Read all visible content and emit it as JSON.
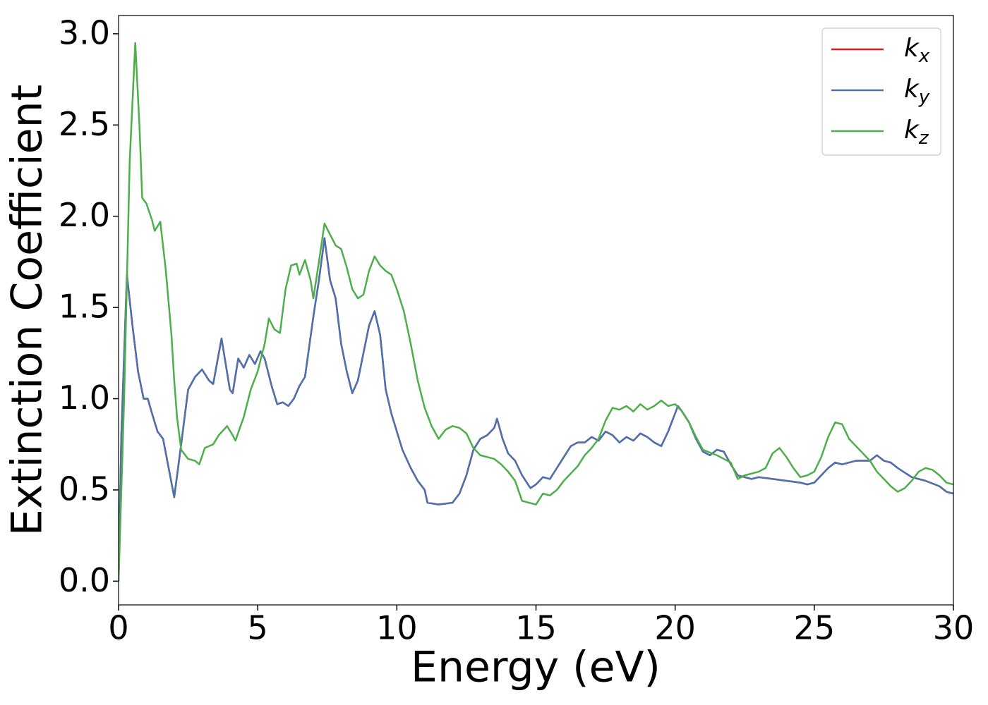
{
  "chart_data": {
    "type": "line",
    "xlabel": "Energy (eV)",
    "ylabel": "Extinction Coefficient",
    "xlim": [
      0,
      30
    ],
    "ylim": [
      -0.13,
      3.1
    ],
    "xticks": [
      0,
      5,
      10,
      15,
      20,
      25,
      30
    ],
    "yticks": [
      {
        "value": 0,
        "label": "0.0"
      },
      0.5,
      {
        "value": 1,
        "label": "1.0"
      },
      1.5,
      {
        "value": 2,
        "label": "2.0"
      },
      2.5,
      {
        "value": 3,
        "label": "3.0"
      }
    ],
    "legend": "upper right",
    "series": [
      {
        "name": "kx",
        "color": "#e41a1c",
        "x": [
          0,
          0.1,
          0.3,
          0.5,
          0.7,
          0.9,
          1.05,
          1.2,
          1.4,
          1.6,
          1.8,
          2.0,
          2.25,
          2.5,
          2.75,
          3.0,
          3.25,
          3.4,
          3.7,
          4.0,
          4.1,
          4.3,
          4.5,
          4.7,
          4.9,
          5.1,
          5.25,
          5.5,
          5.7,
          5.9,
          6.1,
          6.3,
          6.5,
          6.7,
          7.0,
          7.2,
          7.4,
          7.6,
          7.8,
          8.0,
          8.2,
          8.4,
          8.6,
          8.8,
          9.0,
          9.2,
          9.4,
          9.6,
          9.8,
          10.0,
          10.2,
          10.5,
          10.75,
          11.0,
          11.1,
          11.5,
          12.0,
          12.25,
          12.5,
          12.75,
          13.0,
          13.25,
          13.5,
          13.6,
          13.8,
          14.0,
          14.25,
          14.5,
          14.8,
          15.0,
          15.25,
          15.5,
          15.75,
          16.0,
          16.25,
          16.5,
          16.75,
          17.0,
          17.25,
          17.5,
          17.75,
          18.0,
          18.25,
          18.5,
          18.75,
          19.0,
          19.25,
          19.5,
          19.75,
          20.0,
          20.1,
          20.25,
          20.5,
          20.75,
          21.0,
          21.25,
          21.5,
          21.75,
          22.0,
          22.25,
          22.5,
          22.75,
          23.0,
          23.5,
          24.0,
          24.5,
          24.75,
          25.0,
          25.25,
          25.5,
          25.75,
          26.0,
          26.5,
          27.0,
          27.25,
          27.5,
          27.75,
          28.0,
          28.5,
          29.0,
          29.5,
          29.75,
          30.0
        ],
        "values": [
          0,
          0.8,
          1.68,
          1.4,
          1.15,
          1.0,
          1.0,
          0.92,
          0.82,
          0.78,
          0.62,
          0.46,
          0.75,
          1.05,
          1.12,
          1.16,
          1.1,
          1.08,
          1.33,
          1.05,
          1.03,
          1.22,
          1.17,
          1.24,
          1.19,
          1.26,
          1.22,
          1.07,
          0.97,
          0.98,
          0.96,
          1.0,
          1.07,
          1.12,
          1.45,
          1.65,
          1.88,
          1.65,
          1.55,
          1.3,
          1.15,
          1.03,
          1.1,
          1.25,
          1.4,
          1.48,
          1.35,
          1.05,
          0.92,
          0.82,
          0.72,
          0.62,
          0.55,
          0.5,
          0.43,
          0.42,
          0.43,
          0.48,
          0.58,
          0.72,
          0.78,
          0.8,
          0.84,
          0.89,
          0.78,
          0.7,
          0.66,
          0.58,
          0.51,
          0.53,
          0.57,
          0.56,
          0.62,
          0.68,
          0.74,
          0.76,
          0.76,
          0.79,
          0.77,
          0.82,
          0.8,
          0.76,
          0.79,
          0.77,
          0.81,
          0.79,
          0.76,
          0.74,
          0.82,
          0.92,
          0.96,
          0.93,
          0.87,
          0.78,
          0.71,
          0.69,
          0.72,
          0.71,
          0.64,
          0.58,
          0.57,
          0.56,
          0.57,
          0.56,
          0.55,
          0.54,
          0.53,
          0.54,
          0.58,
          0.62,
          0.65,
          0.64,
          0.66,
          0.66,
          0.69,
          0.66,
          0.65,
          0.62,
          0.57,
          0.55,
          0.52,
          0.49,
          0.48
        ]
      },
      {
        "name": "ky",
        "color": "#4a72b0",
        "x": [
          0,
          0.1,
          0.3,
          0.5,
          0.7,
          0.9,
          1.05,
          1.2,
          1.4,
          1.6,
          1.8,
          2.0,
          2.25,
          2.5,
          2.75,
          3.0,
          3.25,
          3.4,
          3.7,
          4.0,
          4.1,
          4.3,
          4.5,
          4.7,
          4.9,
          5.1,
          5.25,
          5.5,
          5.7,
          5.9,
          6.1,
          6.3,
          6.5,
          6.7,
          7.0,
          7.2,
          7.4,
          7.6,
          7.8,
          8.0,
          8.2,
          8.4,
          8.6,
          8.8,
          9.0,
          9.2,
          9.4,
          9.6,
          9.8,
          10.0,
          10.2,
          10.5,
          10.75,
          11.0,
          11.1,
          11.5,
          12.0,
          12.25,
          12.5,
          12.75,
          13.0,
          13.25,
          13.5,
          13.6,
          13.8,
          14.0,
          14.25,
          14.5,
          14.8,
          15.0,
          15.25,
          15.5,
          15.75,
          16.0,
          16.25,
          16.5,
          16.75,
          17.0,
          17.25,
          17.5,
          17.75,
          18.0,
          18.25,
          18.5,
          18.75,
          19.0,
          19.25,
          19.5,
          19.75,
          20.0,
          20.1,
          20.25,
          20.5,
          20.75,
          21.0,
          21.25,
          21.5,
          21.75,
          22.0,
          22.25,
          22.5,
          22.75,
          23.0,
          23.5,
          24.0,
          24.5,
          24.75,
          25.0,
          25.25,
          25.5,
          25.75,
          26.0,
          26.5,
          27.0,
          27.25,
          27.5,
          27.75,
          28.0,
          28.5,
          29.0,
          29.5,
          29.75,
          30.0
        ],
        "values": [
          0,
          0.8,
          1.68,
          1.4,
          1.15,
          1.0,
          1.0,
          0.92,
          0.82,
          0.78,
          0.62,
          0.46,
          0.75,
          1.05,
          1.12,
          1.16,
          1.1,
          1.08,
          1.33,
          1.05,
          1.03,
          1.22,
          1.17,
          1.24,
          1.19,
          1.26,
          1.22,
          1.07,
          0.97,
          0.98,
          0.96,
          1.0,
          1.07,
          1.12,
          1.45,
          1.65,
          1.88,
          1.65,
          1.55,
          1.3,
          1.15,
          1.03,
          1.1,
          1.25,
          1.4,
          1.48,
          1.35,
          1.05,
          0.92,
          0.82,
          0.72,
          0.62,
          0.55,
          0.5,
          0.43,
          0.42,
          0.43,
          0.48,
          0.58,
          0.72,
          0.78,
          0.8,
          0.84,
          0.89,
          0.78,
          0.7,
          0.66,
          0.58,
          0.51,
          0.53,
          0.57,
          0.56,
          0.62,
          0.68,
          0.74,
          0.76,
          0.76,
          0.79,
          0.77,
          0.82,
          0.8,
          0.76,
          0.79,
          0.77,
          0.81,
          0.79,
          0.76,
          0.74,
          0.82,
          0.92,
          0.96,
          0.93,
          0.87,
          0.78,
          0.71,
          0.69,
          0.72,
          0.71,
          0.64,
          0.58,
          0.57,
          0.56,
          0.57,
          0.56,
          0.55,
          0.54,
          0.53,
          0.54,
          0.58,
          0.62,
          0.65,
          0.64,
          0.66,
          0.66,
          0.69,
          0.66,
          0.65,
          0.62,
          0.57,
          0.55,
          0.52,
          0.49,
          0.48
        ]
      },
      {
        "name": "kz",
        "color": "#4daf4a",
        "x": [
          0,
          0.2,
          0.4,
          0.6,
          0.75,
          0.85,
          1.0,
          1.2,
          1.3,
          1.5,
          1.7,
          1.9,
          2.0,
          2.1,
          2.25,
          2.5,
          2.75,
          2.9,
          3.1,
          3.4,
          3.6,
          3.9,
          4.1,
          4.2,
          4.5,
          4.75,
          5.0,
          5.25,
          5.4,
          5.6,
          5.8,
          6.0,
          6.2,
          6.4,
          6.5,
          6.7,
          6.9,
          7.0,
          7.2,
          7.4,
          7.6,
          7.8,
          8.0,
          8.2,
          8.4,
          8.6,
          8.8,
          9.0,
          9.2,
          9.4,
          9.6,
          9.8,
          10.0,
          10.25,
          10.5,
          10.75,
          11.0,
          11.25,
          11.5,
          11.75,
          12.0,
          12.25,
          12.5,
          12.75,
          13.0,
          13.25,
          13.5,
          13.75,
          14.0,
          14.25,
          14.5,
          14.75,
          15.0,
          15.25,
          15.5,
          15.75,
          16.0,
          16.25,
          16.5,
          16.75,
          17.0,
          17.25,
          17.5,
          17.75,
          18.0,
          18.25,
          18.5,
          18.75,
          19.0,
          19.25,
          19.5,
          19.75,
          20.0,
          20.25,
          20.5,
          20.75,
          21.0,
          21.5,
          21.75,
          22.0,
          22.25,
          22.5,
          22.75,
          23.0,
          23.25,
          23.5,
          23.75,
          24.0,
          24.25,
          24.5,
          24.75,
          25.0,
          25.25,
          25.5,
          25.75,
          26.0,
          26.25,
          26.5,
          26.75,
          27.0,
          27.25,
          27.5,
          27.75,
          28.0,
          28.25,
          28.5,
          28.75,
          29.0,
          29.25,
          29.5,
          29.75,
          30.0
        ],
        "values": [
          0,
          1.0,
          2.3,
          2.95,
          2.5,
          2.1,
          2.07,
          1.98,
          1.92,
          1.97,
          1.7,
          1.35,
          1.1,
          0.9,
          0.72,
          0.67,
          0.66,
          0.64,
          0.73,
          0.75,
          0.8,
          0.85,
          0.8,
          0.77,
          0.9,
          1.05,
          1.15,
          1.3,
          1.44,
          1.38,
          1.36,
          1.6,
          1.73,
          1.74,
          1.68,
          1.76,
          1.65,
          1.55,
          1.75,
          1.96,
          1.9,
          1.84,
          1.82,
          1.72,
          1.6,
          1.55,
          1.57,
          1.7,
          1.78,
          1.73,
          1.7,
          1.68,
          1.6,
          1.48,
          1.3,
          1.1,
          0.95,
          0.85,
          0.78,
          0.83,
          0.85,
          0.84,
          0.81,
          0.73,
          0.69,
          0.68,
          0.67,
          0.64,
          0.6,
          0.55,
          0.44,
          0.43,
          0.42,
          0.48,
          0.47,
          0.5,
          0.55,
          0.59,
          0.63,
          0.69,
          0.73,
          0.78,
          0.88,
          0.95,
          0.94,
          0.96,
          0.93,
          0.97,
          0.94,
          0.96,
          0.99,
          0.96,
          0.97,
          0.93,
          0.87,
          0.79,
          0.72,
          0.69,
          0.67,
          0.65,
          0.56,
          0.58,
          0.59,
          0.6,
          0.62,
          0.7,
          0.73,
          0.68,
          0.62,
          0.57,
          0.58,
          0.6,
          0.68,
          0.79,
          0.87,
          0.86,
          0.78,
          0.74,
          0.7,
          0.66,
          0.6,
          0.56,
          0.52,
          0.49,
          0.51,
          0.55,
          0.6,
          0.62,
          0.61,
          0.58,
          0.54,
          0.53
        ]
      }
    ]
  }
}
